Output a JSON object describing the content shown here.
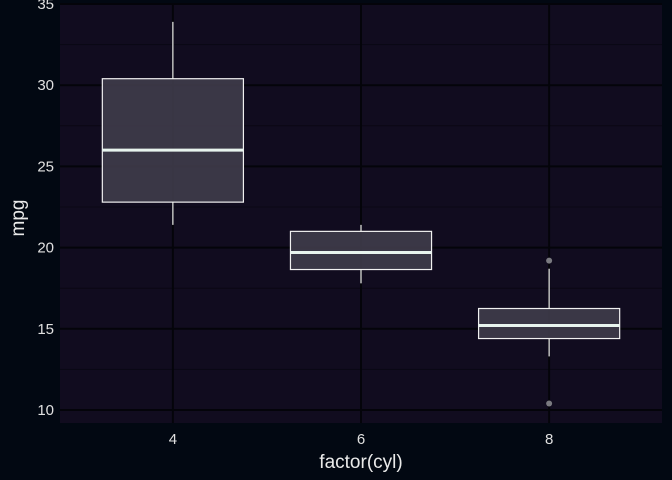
{
  "chart_data": {
    "type": "boxplot",
    "title": "",
    "xlabel": "factor(cyl)",
    "ylabel": "mpg",
    "categories": [
      "4",
      "6",
      "8"
    ],
    "ylim": [
      9.2,
      35
    ],
    "yticks": [
      10,
      15,
      20,
      25,
      30,
      35
    ],
    "grid": true,
    "legend": "none",
    "boxes": [
      {
        "category": "4",
        "whisker_low": 21.4,
        "q1": 22.8,
        "median": 26.0,
        "q3": 30.4,
        "whisker_high": 33.9,
        "outliers": []
      },
      {
        "category": "6",
        "whisker_low": 17.8,
        "q1": 18.65,
        "median": 19.7,
        "q3": 21.0,
        "whisker_high": 21.4,
        "outliers": []
      },
      {
        "category": "8",
        "whisker_low": 13.3,
        "q1": 14.4,
        "median": 15.2,
        "q3": 16.25,
        "whisker_high": 18.7,
        "outliers": [
          10.4,
          19.2
        ]
      }
    ],
    "colors": {
      "page_background": "#020812",
      "panel_background": "#110c1f",
      "grid_major": "#04040a",
      "grid_minor": "#0a0714",
      "box_fill": "#3f3c4a",
      "box_stroke": "#f0f0f0",
      "median": "#e8f4ee",
      "outlier": "#7a7a80"
    }
  }
}
